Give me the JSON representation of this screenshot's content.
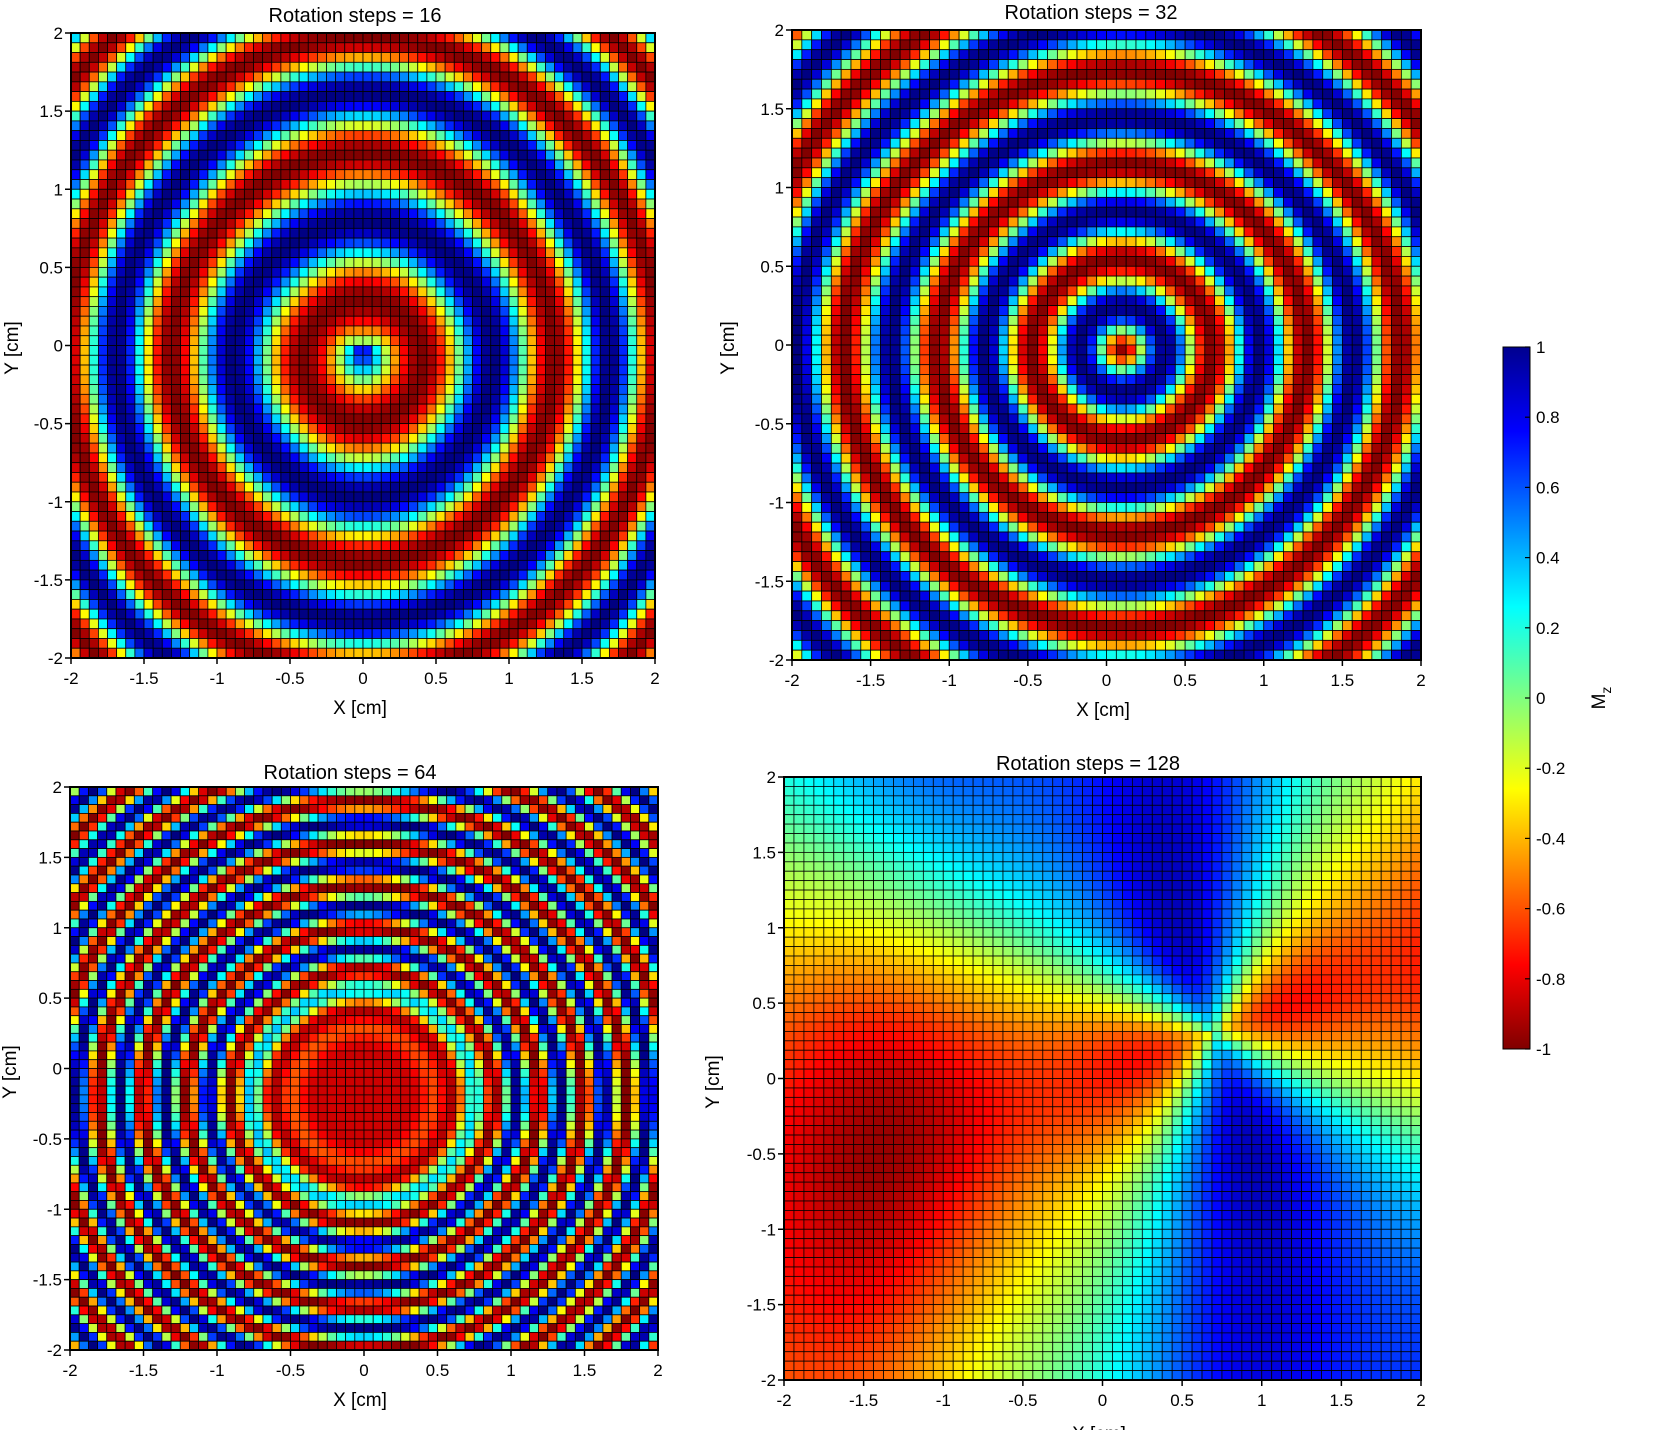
{
  "figure": {
    "colorbar_label": "M",
    "colorbar_label_sub": "z"
  },
  "chart_data": [
    {
      "type": "heatmap",
      "title": "Rotation steps = 16",
      "xlabel": "X [cm]",
      "ylabel": "Y [cm]",
      "xlim": [
        -2,
        2
      ],
      "ylim": [
        -2,
        2
      ],
      "x_ticks": [
        "-2",
        "-1.5",
        "-1",
        "-0.5",
        "0",
        "0.5",
        "1",
        "1.5",
        "2"
      ],
      "y_ticks": [
        "-2",
        "-1.5",
        "-1",
        "-0.5",
        "0",
        "0.5",
        "1",
        "1.5",
        "2"
      ],
      "grid": true,
      "grid_size": [
        64,
        64
      ],
      "value": "M_z",
      "pattern": {
        "kind": "rings",
        "center": [
          0.0,
          0.0
        ],
        "freq": 5.0,
        "quad": 1.1,
        "tilt": 0.6,
        "phase": 1.0
      }
    },
    {
      "type": "heatmap",
      "title": "Rotation steps = 32",
      "xlabel": "X [cm]",
      "ylabel": "Y [cm]",
      "xlim": [
        -2,
        2
      ],
      "ylim": [
        -2,
        2
      ],
      "x_ticks": [
        "-2",
        "-1.5",
        "-1",
        "-0.5",
        "0",
        "0.5",
        "1",
        "1.5",
        "2"
      ],
      "y_ticks": [
        "-2",
        "-1.5",
        "-1",
        "-0.5",
        "0",
        "0.5",
        "1",
        "1.5",
        "2"
      ],
      "grid": true,
      "grid_size": [
        64,
        64
      ],
      "value": "M_z",
      "pattern": {
        "kind": "rings",
        "center": [
          0.1,
          0.0
        ],
        "freq": 10.5,
        "quad": 0.0,
        "tilt": 0.3,
        "phase": 3.4
      }
    },
    {
      "type": "heatmap",
      "title": "Rotation steps = 64",
      "xlabel": "X [cm]",
      "ylabel": "Y [cm]",
      "xlim": [
        -2,
        2
      ],
      "ylim": [
        -2,
        2
      ],
      "x_ticks": [
        "-2",
        "-1.5",
        "-1",
        "-0.5",
        "0",
        "0.5",
        "1",
        "1.5",
        "2"
      ],
      "y_ticks": [
        "-2",
        "-1.5",
        "-1",
        "-0.5",
        "0",
        "0.5",
        "1",
        "1.5",
        "2"
      ],
      "grid": true,
      "grid_size": [
        64,
        64
      ],
      "value": "M_z",
      "pattern": {
        "kind": "fine",
        "center": [
          0.0,
          -0.2
        ],
        "freq": 21.0,
        "core": 0.75,
        "tilt": 0.2,
        "phase": 3.1
      }
    },
    {
      "type": "heatmap",
      "title": "Rotation steps = 128",
      "xlabel": "X [cm]",
      "ylabel": "Y [cm]",
      "xlim": [
        -2,
        2
      ],
      "ylim": [
        -2,
        2
      ],
      "x_ticks": [
        "-2",
        "-1.5",
        "-1",
        "-0.5",
        "0",
        "0.5",
        "1",
        "1.5",
        "2"
      ],
      "y_ticks": [
        "-2",
        "-1.5",
        "-1",
        "-0.5",
        "0",
        "0.5",
        "1",
        "1.5",
        "2"
      ],
      "grid": true,
      "grid_size": [
        64,
        64
      ],
      "value": "M_z",
      "pattern": {
        "kind": "lobes",
        "center": [
          0.7,
          0.3
        ]
      }
    }
  ],
  "colorbar": {
    "colormap": "jet",
    "range": [
      -1,
      1
    ],
    "ticks": [
      "1",
      "0.8",
      "0.6",
      "0.4",
      "0.2",
      "0",
      "-0.2",
      "-0.4",
      "-0.6",
      "-0.8",
      "-1"
    ],
    "tick_values": [
      1,
      0.8,
      0.6,
      0.4,
      0.2,
      0,
      -0.2,
      -0.4,
      -0.6,
      -0.8,
      -1
    ]
  }
}
